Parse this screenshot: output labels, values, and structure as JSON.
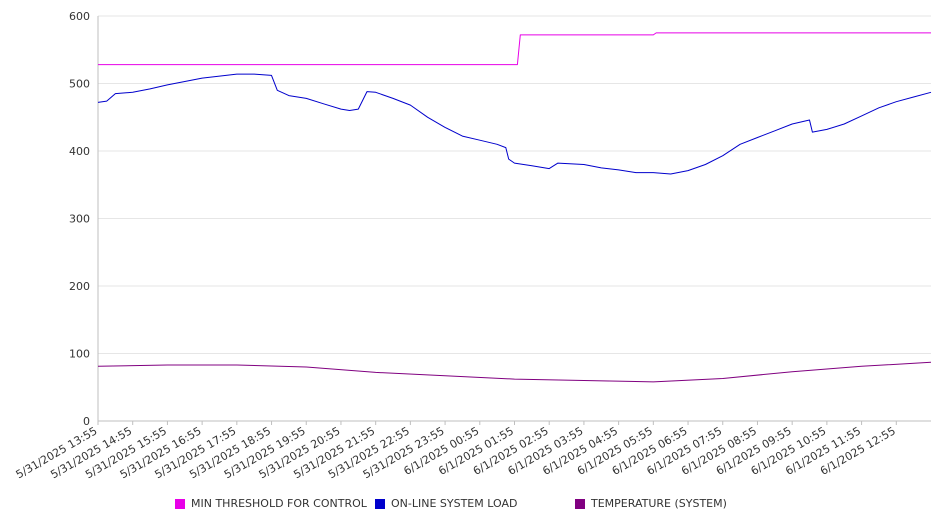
{
  "chart_data": {
    "type": "line",
    "title": "",
    "xlabel": "",
    "ylabel": "",
    "ylim": [
      0,
      600
    ],
    "yticks": [
      0,
      100,
      200,
      300,
      400,
      500,
      600
    ],
    "grid": "horizontal",
    "legend_position": "bottom",
    "x_tick_labels": [
      "5/31/2025 13:55",
      "5/31/2025 14:55",
      "5/31/2025 15:55",
      "5/31/2025 16:55",
      "5/31/2025 17:55",
      "5/31/2025 18:55",
      "5/31/2025 19:55",
      "5/31/2025 20:55",
      "5/31/2025 21:55",
      "5/31/2025 22:55",
      "5/31/2025 23:55",
      "6/1/2025 00:55",
      "6/1/2025 01:55",
      "6/1/2025 02:55",
      "6/1/2025 03:55",
      "6/1/2025 04:55",
      "6/1/2025 05:55",
      "6/1/2025 06:55",
      "6/1/2025 07:55",
      "6/1/2025 08:55",
      "6/1/2025 09:55",
      "6/1/2025 10:55",
      "6/1/2025 11:55",
      "6/1/2025 12:55"
    ],
    "series": [
      {
        "name": "MIN THRESHOLD FOR CONTROL",
        "color": "#e800e8",
        "points": [
          [
            "5/31/2025 13:55",
            528
          ],
          [
            "6/1/2025 02:00",
            528
          ],
          [
            "6/1/2025 02:05",
            572
          ],
          [
            "6/1/2025 05:55",
            572
          ],
          [
            "6/1/2025 06:00",
            575
          ],
          [
            "6/1/2025 13:55",
            575
          ]
        ]
      },
      {
        "name": "ON-LINE SYSTEM LOAD",
        "color": "#0000cc",
        "points": [
          [
            "5/31/2025 13:55",
            472
          ],
          [
            "5/31/2025 14:10",
            474
          ],
          [
            "5/31/2025 14:25",
            485
          ],
          [
            "5/31/2025 14:55",
            487
          ],
          [
            "5/31/2025 15:25",
            492
          ],
          [
            "5/31/2025 15:55",
            498
          ],
          [
            "5/31/2025 16:25",
            503
          ],
          [
            "5/31/2025 16:55",
            508
          ],
          [
            "5/31/2025 17:25",
            511
          ],
          [
            "5/31/2025 17:55",
            514
          ],
          [
            "5/31/2025 18:25",
            514
          ],
          [
            "5/31/2025 18:55",
            512
          ],
          [
            "5/31/2025 19:05",
            490
          ],
          [
            "5/31/2025 19:25",
            482
          ],
          [
            "5/31/2025 19:55",
            478
          ],
          [
            "5/31/2025 20:25",
            470
          ],
          [
            "5/31/2025 20:55",
            462
          ],
          [
            "5/31/2025 21:10",
            460
          ],
          [
            "5/31/2025 21:25",
            462
          ],
          [
            "5/31/2025 21:40",
            488
          ],
          [
            "5/31/2025 21:55",
            487
          ],
          [
            "5/31/2025 22:25",
            478
          ],
          [
            "5/31/2025 22:55",
            468
          ],
          [
            "5/31/2025 23:25",
            450
          ],
          [
            "5/31/2025 23:55",
            435
          ],
          [
            "6/1/2025 00:25",
            422
          ],
          [
            "6/1/2025 00:55",
            416
          ],
          [
            "6/1/2025 01:25",
            410
          ],
          [
            "6/1/2025 01:40",
            405
          ],
          [
            "6/1/2025 01:45",
            388
          ],
          [
            "6/1/2025 01:55",
            382
          ],
          [
            "6/1/2025 02:25",
            378
          ],
          [
            "6/1/2025 02:55",
            374
          ],
          [
            "6/1/2025 03:10",
            382
          ],
          [
            "6/1/2025 03:55",
            380
          ],
          [
            "6/1/2025 04:25",
            375
          ],
          [
            "6/1/2025 04:55",
            372
          ],
          [
            "6/1/2025 05:25",
            368
          ],
          [
            "6/1/2025 05:55",
            368
          ],
          [
            "6/1/2025 06:25",
            366
          ],
          [
            "6/1/2025 06:55",
            371
          ],
          [
            "6/1/2025 07:25",
            380
          ],
          [
            "6/1/2025 07:55",
            393
          ],
          [
            "6/1/2025 08:25",
            410
          ],
          [
            "6/1/2025 08:55",
            420
          ],
          [
            "6/1/2025 09:25",
            430
          ],
          [
            "6/1/2025 09:55",
            440
          ],
          [
            "6/1/2025 10:25",
            446
          ],
          [
            "6/1/2025 10:30",
            428
          ],
          [
            "6/1/2025 10:55",
            432
          ],
          [
            "6/1/2025 11:25",
            440
          ],
          [
            "6/1/2025 11:55",
            452
          ],
          [
            "6/1/2025 12:25",
            464
          ],
          [
            "6/1/2025 12:55",
            473
          ],
          [
            "6/1/2025 13:25",
            480
          ],
          [
            "6/1/2025 13:55",
            487
          ]
        ]
      },
      {
        "name": "TEMPERATURE (SYSTEM)",
        "color": "#800080",
        "points": [
          [
            "5/31/2025 13:55",
            81
          ],
          [
            "5/31/2025 15:55",
            83
          ],
          [
            "5/31/2025 17:55",
            83
          ],
          [
            "5/31/2025 19:55",
            80
          ],
          [
            "5/31/2025 21:55",
            72
          ],
          [
            "5/31/2025 23:55",
            67
          ],
          [
            "6/1/2025 01:55",
            62
          ],
          [
            "6/1/2025 03:55",
            60
          ],
          [
            "6/1/2025 05:55",
            58
          ],
          [
            "6/1/2025 07:55",
            63
          ],
          [
            "6/1/2025 09:55",
            73
          ],
          [
            "6/1/2025 11:55",
            81
          ],
          [
            "6/1/2025 13:55",
            87
          ]
        ]
      }
    ]
  }
}
